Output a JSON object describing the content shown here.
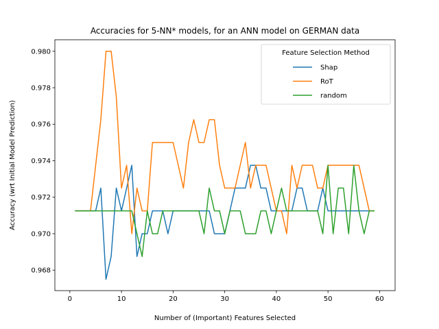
{
  "chart_data": {
    "type": "line",
    "title": "Accuracies for 5-NN* models, for an ANN model on GERMAN data",
    "xlabel": "Number of (Important) Features Selected",
    "ylabel": "Accuracy (wrt Initial Model Prediction)",
    "xlim": [
      -2.9,
      63
    ],
    "ylim": [
      0.96688,
      0.98063
    ],
    "xticks": [
      0,
      10,
      20,
      30,
      40,
      50,
      60
    ],
    "yticks": [
      0.968,
      0.97,
      0.972,
      0.974,
      0.976,
      0.978,
      0.98
    ],
    "ytick_labels": [
      "0.968",
      "0.970",
      "0.972",
      "0.974",
      "0.976",
      "0.978",
      "0.980"
    ],
    "grid": false,
    "legend": {
      "title": "Feature Selection Method",
      "position": "top-right"
    },
    "x": [
      1,
      2,
      3,
      4,
      5,
      6,
      7,
      8,
      9,
      10,
      11,
      12,
      13,
      14,
      15,
      16,
      17,
      18,
      19,
      20,
      21,
      22,
      23,
      24,
      25,
      26,
      27,
      28,
      29,
      30,
      31,
      32,
      33,
      34,
      35,
      36,
      37,
      38,
      39,
      40,
      41,
      42,
      43,
      44,
      45,
      46,
      47,
      48,
      49,
      50,
      51,
      52,
      53,
      54,
      55,
      56,
      57,
      58,
      59
    ],
    "series": [
      {
        "name": "Shap",
        "color": "#1f77b4",
        "values": [
          0.97125,
          0.97125,
          0.97125,
          0.97125,
          0.97125,
          0.9725,
          0.9675,
          0.96875,
          0.9725,
          0.97125,
          0.9725,
          0.97375,
          0.96875,
          0.97,
          0.97,
          0.97125,
          0.97125,
          0.97125,
          0.97,
          0.97125,
          0.97125,
          0.97125,
          0.97125,
          0.97125,
          0.97125,
          0.97125,
          0.97125,
          0.97,
          0.97,
          0.97,
          0.97125,
          0.9725,
          0.9725,
          0.9725,
          0.97375,
          0.97375,
          0.9725,
          0.9725,
          0.97125,
          0.97125,
          0.97125,
          0.97125,
          0.97125,
          0.9725,
          0.9725,
          0.97125,
          0.97125,
          0.97125,
          0.9725,
          0.97125,
          0.97125,
          0.97125,
          0.97125,
          0.97125,
          0.97125,
          0.97125,
          0.97125,
          0.97125,
          0.97125
        ]
      },
      {
        "name": "RoT",
        "color": "#ff7f0e",
        "values": [
          0.97125,
          0.97125,
          0.97125,
          0.97125,
          0.97375,
          0.97625,
          0.98,
          0.98,
          0.9775,
          0.9725,
          0.97375,
          0.97,
          0.9725,
          0.97125,
          0.97125,
          0.975,
          0.975,
          0.975,
          0.975,
          0.975,
          0.97375,
          0.9725,
          0.975,
          0.97625,
          0.975,
          0.975,
          0.97625,
          0.97625,
          0.97375,
          0.9725,
          0.9725,
          0.9725,
          0.97375,
          0.975,
          0.9725,
          0.97375,
          0.97375,
          0.97375,
          0.9725,
          0.97125,
          0.97125,
          0.97,
          0.97375,
          0.9725,
          0.97375,
          0.97375,
          0.97375,
          0.9725,
          0.9725,
          0.97375,
          0.97375,
          0.97375,
          0.97375,
          0.97375,
          0.97375,
          0.97375,
          0.9725,
          0.97125,
          0.97125
        ]
      },
      {
        "name": "random",
        "color": "#2ca02c",
        "values": [
          0.97125,
          0.97125,
          0.97125,
          0.97125,
          0.97125,
          0.97125,
          0.97125,
          0.97125,
          0.97125,
          0.97125,
          0.97125,
          0.97125,
          0.97,
          0.96875,
          0.97125,
          0.97,
          0.97,
          0.97125,
          0.97125,
          0.97125,
          0.97125,
          0.97125,
          0.97125,
          0.97125,
          0.97125,
          0.97,
          0.9725,
          0.97125,
          0.97125,
          0.97,
          0.97125,
          0.97125,
          0.97125,
          0.97,
          0.97,
          0.97,
          0.97125,
          0.97125,
          0.97,
          0.97125,
          0.9725,
          0.97125,
          0.97125,
          0.97125,
          0.97125,
          0.97125,
          0.97125,
          0.97125,
          0.97,
          0.97375,
          0.97,
          0.9725,
          0.9725,
          0.97,
          0.97375,
          0.97125,
          0.97,
          0.97125,
          0.97125
        ]
      }
    ]
  }
}
